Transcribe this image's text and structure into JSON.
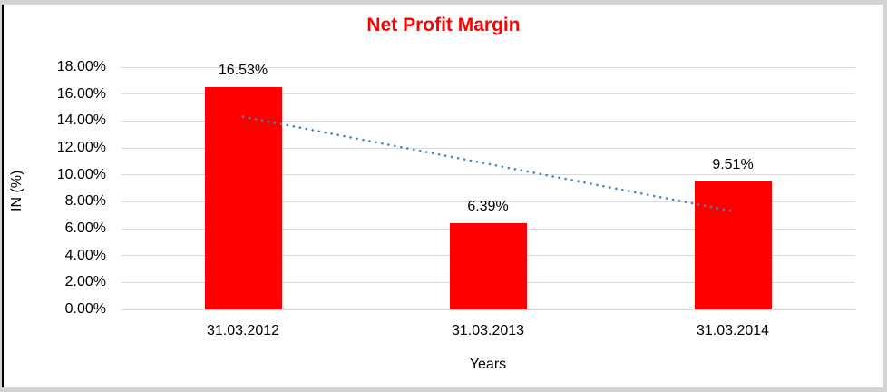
{
  "chart_data": {
    "type": "bar",
    "title": "Net Profit Margin",
    "title_color": "#ff0000",
    "categories": [
      "31.03.2012",
      "31.03.2013",
      "31.03.2014"
    ],
    "values": [
      16.53,
      6.39,
      9.51
    ],
    "data_labels": [
      "16.53%",
      "6.39%",
      "9.51%"
    ],
    "xlabel": "Years",
    "ylabel": "IN (%)",
    "ylim": [
      0,
      18
    ],
    "ytick_step": 2,
    "ytick_labels": [
      "0.00%",
      "2.00%",
      "4.00%",
      "6.00%",
      "8.00%",
      "10.00%",
      "12.00%",
      "14.00%",
      "16.00%",
      "18.00%"
    ],
    "bar_color": "#ff0000",
    "grid": true,
    "gridline_color": "#d9d9d9",
    "legend": "none",
    "trendline": {
      "type": "linear",
      "style": "dotted",
      "color": "#4f81bd",
      "start_value": 14.32,
      "end_value": 7.3
    }
  }
}
